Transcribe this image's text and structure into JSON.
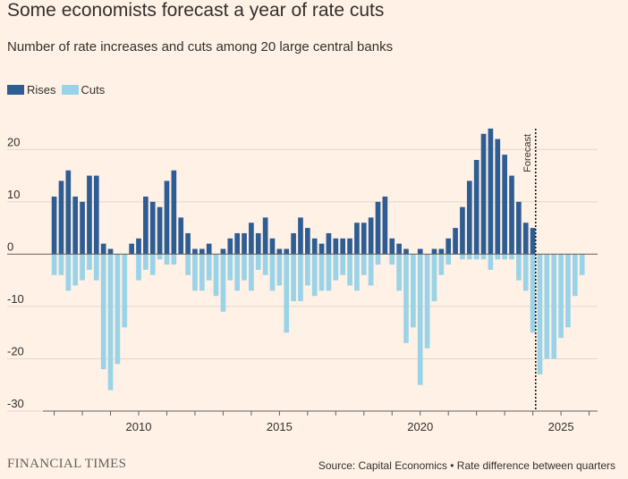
{
  "page": {
    "title": "Some economists forecast a year of rate cuts",
    "subtitle": "Number of rate increases and cuts among 20 large central banks",
    "brand": "FINANCIAL TIMES",
    "source": "Source: Capital Economics • Rate difference between quarters"
  },
  "colors": {
    "background": "#fff1e5",
    "rises": "#2e5d93",
    "cuts": "#9ad3e8",
    "grid": "#e2d6cb",
    "text": "#33302e"
  },
  "chart_data": {
    "type": "bar",
    "title": "Some economists forecast a year of rate cuts",
    "subtitle": "Number of rate increases and cuts among 20 large central banks",
    "xlabel": "",
    "ylabel": "",
    "ylim": [
      -30,
      25
    ],
    "xlim": [
      2006.6,
      2026.3
    ],
    "yticks": [
      20,
      10,
      0,
      -10,
      -20,
      -30
    ],
    "xticks": [
      2010,
      2015,
      2020,
      2025
    ],
    "grid": true,
    "legend": "top-left",
    "bar_width": 0.18,
    "forecast": {
      "x": 2024.1,
      "label": "Forecast"
    },
    "series": [
      {
        "name": "Rises",
        "x": [
          2007.0,
          2007.25,
          2007.5,
          2007.75,
          2008.0,
          2008.25,
          2008.5,
          2008.75,
          2009.0,
          2009.25,
          2009.5,
          2009.75,
          2010.0,
          2010.25,
          2010.5,
          2010.75,
          2011.0,
          2011.25,
          2011.5,
          2011.75,
          2012.0,
          2012.25,
          2012.5,
          2012.75,
          2013.0,
          2013.25,
          2013.5,
          2013.75,
          2014.0,
          2014.25,
          2014.5,
          2014.75,
          2015.0,
          2015.25,
          2015.5,
          2015.75,
          2016.0,
          2016.25,
          2016.5,
          2016.75,
          2017.0,
          2017.25,
          2017.5,
          2017.75,
          2018.0,
          2018.25,
          2018.5,
          2018.75,
          2019.0,
          2019.25,
          2019.5,
          2019.75,
          2020.0,
          2020.25,
          2020.5,
          2020.75,
          2021.0,
          2021.25,
          2021.5,
          2021.75,
          2022.0,
          2022.25,
          2022.5,
          2022.75,
          2023.0,
          2023.25,
          2023.5,
          2023.75,
          2024.0,
          2024.25,
          2024.5,
          2024.75,
          2025.0,
          2025.25,
          2025.5,
          2025.75
        ],
        "values": [
          11,
          14,
          16,
          11,
          10,
          15,
          15,
          2,
          1,
          0,
          0,
          2,
          3,
          11,
          10,
          9,
          14,
          16,
          7,
          4,
          1,
          1,
          2,
          0,
          1,
          3,
          4,
          4,
          6,
          4,
          7,
          3,
          1,
          1,
          4,
          7,
          5,
          3,
          2,
          4,
          3,
          3,
          3,
          6,
          6,
          7,
          10,
          11,
          3,
          2,
          1,
          0,
          1,
          0,
          1,
          1,
          3,
          5,
          9,
          14,
          18,
          23,
          24,
          22,
          19,
          15,
          10,
          6,
          5,
          0,
          0,
          0,
          0,
          0,
          0,
          0
        ]
      },
      {
        "name": "Cuts",
        "x": [
          2007.0,
          2007.25,
          2007.5,
          2007.75,
          2008.0,
          2008.25,
          2008.5,
          2008.75,
          2009.0,
          2009.25,
          2009.5,
          2009.75,
          2010.0,
          2010.25,
          2010.5,
          2010.75,
          2011.0,
          2011.25,
          2011.5,
          2011.75,
          2012.0,
          2012.25,
          2012.5,
          2012.75,
          2013.0,
          2013.25,
          2013.5,
          2013.75,
          2014.0,
          2014.25,
          2014.5,
          2014.75,
          2015.0,
          2015.25,
          2015.5,
          2015.75,
          2016.0,
          2016.25,
          2016.5,
          2016.75,
          2017.0,
          2017.25,
          2017.5,
          2017.75,
          2018.0,
          2018.25,
          2018.5,
          2018.75,
          2019.0,
          2019.25,
          2019.5,
          2019.75,
          2020.0,
          2020.25,
          2020.5,
          2020.75,
          2021.0,
          2021.25,
          2021.5,
          2021.75,
          2022.0,
          2022.25,
          2022.5,
          2022.75,
          2023.0,
          2023.25,
          2023.5,
          2023.75,
          2024.0,
          2024.25,
          2024.5,
          2024.75,
          2025.0,
          2025.25,
          2025.5,
          2025.75
        ],
        "values": [
          -4,
          -4,
          -7,
          -6,
          -5,
          -3,
          -5,
          -22,
          -26,
          -21,
          -14,
          0,
          -5,
          -3,
          -4,
          -1,
          -2,
          -2,
          0,
          -4,
          -7,
          -7,
          -5,
          -8,
          -11,
          -5,
          -7,
          -5,
          -7,
          -3,
          -4,
          -7,
          -6,
          -15,
          -9,
          -9,
          -6,
          -8,
          -7,
          -7,
          -5,
          -4,
          -6,
          -7,
          -4,
          -6,
          -2,
          0,
          -2,
          -7,
          -17,
          -14,
          -25,
          -18,
          -9,
          -4,
          -2,
          0,
          -1,
          -1,
          -1,
          -1,
          -3,
          -1,
          -1,
          -1,
          -5,
          -7,
          -15,
          -23,
          -20,
          -20,
          -16,
          -14,
          -8,
          -4
        ]
      }
    ]
  }
}
